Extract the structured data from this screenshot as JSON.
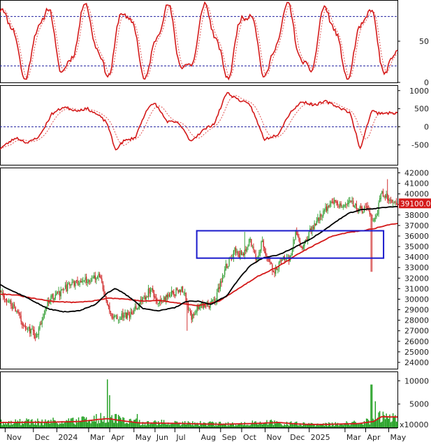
{
  "colors": {
    "up": "#2e9b2e",
    "down": "#cc1a1a",
    "line_red": "#d41919",
    "line_black": "#000000",
    "dotted_red": "#e05050",
    "ref_line": "#2323a0",
    "box": "#1a1acc",
    "volume": "#1e9e1e",
    "price_label_bg": "#d41919",
    "price_label_text": "#ffffff"
  },
  "chart_data": [
    {
      "panel": "stochastic",
      "type": "line",
      "y_ticks": [
        "50",
        "0"
      ],
      "y_tick_values": [
        50,
        0
      ],
      "ref_levels": [
        20,
        80
      ],
      "ylim": [
        0,
        100
      ]
    },
    {
      "panel": "macd",
      "type": "line",
      "y_ticks": [
        "1000",
        "500",
        "0",
        "-500"
      ],
      "y_tick_values": [
        1000,
        500,
        0,
        -500
      ],
      "ref_levels": [
        0
      ],
      "ylim": [
        -1050,
        1150
      ]
    },
    {
      "panel": "price",
      "type": "candlestick",
      "y_ticks": [
        "42000",
        "41000",
        "40000",
        "39000",
        "38000",
        "37000",
        "36000",
        "35000",
        "34000",
        "33000",
        "32000",
        "31000",
        "30000",
        "29000",
        "28000",
        "27000",
        "26000",
        "25000",
        "24000"
      ],
      "y_tick_values": [
        42000,
        41000,
        40000,
        39000,
        38000,
        37000,
        36000,
        35000,
        34000,
        33000,
        32000,
        31000,
        30000,
        29000,
        28000,
        27000,
        26000,
        25000,
        24000
      ],
      "ylim": [
        23400,
        42500
      ],
      "last_price_label": "39100.00",
      "last_price": 39100,
      "box": {
        "x_start": 0.495,
        "x_end": 0.965,
        "y_low": 33900,
        "y_high": 36500
      },
      "ma_black_knots": [
        [
          0,
          31400
        ],
        [
          0.03,
          30800
        ],
        [
          0.06,
          30300
        ],
        [
          0.09,
          29700
        ],
        [
          0.12,
          29100
        ],
        [
          0.16,
          28800
        ],
        [
          0.2,
          28900
        ],
        [
          0.24,
          29500
        ],
        [
          0.27,
          30600
        ],
        [
          0.29,
          31000
        ],
        [
          0.31,
          30600
        ],
        [
          0.34,
          29800
        ],
        [
          0.36,
          29100
        ],
        [
          0.4,
          28900
        ],
        [
          0.44,
          29200
        ],
        [
          0.47,
          29800
        ],
        [
          0.5,
          29800
        ],
        [
          0.53,
          29500
        ],
        [
          0.57,
          30300
        ],
        [
          0.6,
          31900
        ],
        [
          0.63,
          33200
        ],
        [
          0.66,
          33900
        ],
        [
          0.7,
          34200
        ],
        [
          0.74,
          34900
        ],
        [
          0.78,
          35700
        ],
        [
          0.81,
          36400
        ],
        [
          0.85,
          37500
        ],
        [
          0.88,
          38200
        ],
        [
          0.91,
          38500
        ],
        [
          0.94,
          38600
        ],
        [
          0.96,
          38700
        ],
        [
          1,
          38800
        ]
      ],
      "ma_red_knots": [
        [
          0,
          30500
        ],
        [
          0.04,
          30400
        ],
        [
          0.08,
          30100
        ],
        [
          0.13,
          29800
        ],
        [
          0.18,
          29700
        ],
        [
          0.23,
          29800
        ],
        [
          0.27,
          30100
        ],
        [
          0.32,
          30000
        ],
        [
          0.36,
          29800
        ],
        [
          0.4,
          29900
        ],
        [
          0.45,
          29600
        ],
        [
          0.5,
          29400
        ],
        [
          0.55,
          29800
        ],
        [
          0.6,
          31000
        ],
        [
          0.65,
          32200
        ],
        [
          0.7,
          33100
        ],
        [
          0.75,
          34300
        ],
        [
          0.79,
          35100
        ],
        [
          0.83,
          35900
        ],
        [
          0.87,
          36300
        ],
        [
          0.91,
          36500
        ],
        [
          0.94,
          36700
        ],
        [
          0.97,
          37000
        ],
        [
          1,
          37200
        ]
      ],
      "candle_path_knots": [
        [
          0,
          30500
        ],
        [
          0.03,
          29400
        ],
        [
          0.06,
          27600
        ],
        [
          0.09,
          26500
        ],
        [
          0.12,
          29800
        ],
        [
          0.15,
          30600
        ],
        [
          0.18,
          31500
        ],
        [
          0.21,
          31800
        ],
        [
          0.235,
          31900
        ],
        [
          0.25,
          32400
        ],
        [
          0.26,
          30600
        ],
        [
          0.28,
          28500
        ],
        [
          0.3,
          28300
        ],
        [
          0.33,
          28500
        ],
        [
          0.36,
          30000
        ],
        [
          0.38,
          31000
        ],
        [
          0.4,
          29600
        ],
        [
          0.43,
          30500
        ],
        [
          0.46,
          31000
        ],
        [
          0.48,
          28200
        ],
        [
          0.5,
          29500
        ],
        [
          0.52,
          29400
        ],
        [
          0.54,
          29800
        ],
        [
          0.555,
          31500
        ],
        [
          0.57,
          33200
        ],
        [
          0.59,
          34600
        ],
        [
          0.61,
          34100
        ],
        [
          0.63,
          35700
        ],
        [
          0.645,
          33900
        ],
        [
          0.66,
          35500
        ],
        [
          0.675,
          33400
        ],
        [
          0.69,
          32700
        ],
        [
          0.71,
          33700
        ],
        [
          0.73,
          34000
        ],
        [
          0.745,
          36500
        ],
        [
          0.76,
          34800
        ],
        [
          0.78,
          36500
        ],
        [
          0.8,
          37700
        ],
        [
          0.82,
          38500
        ],
        [
          0.84,
          39300
        ],
        [
          0.86,
          38700
        ],
        [
          0.88,
          39600
        ],
        [
          0.895,
          38700
        ],
        [
          0.91,
          38400
        ],
        [
          0.925,
          38500
        ],
        [
          0.935,
          37600
        ],
        [
          0.945,
          37600
        ],
        [
          0.96,
          40200
        ],
        [
          0.975,
          39700
        ],
        [
          1,
          39100
        ]
      ],
      "candle_count": 360,
      "spikes": [
        {
          "t": 0.24,
          "high": 32600
        },
        {
          "t": 0.47,
          "low": 27000
        },
        {
          "t": 0.615,
          "high": 36400
        },
        {
          "t": 0.935,
          "low": 32600
        },
        {
          "t": 0.975,
          "high": 41400
        }
      ]
    },
    {
      "panel": "volume",
      "type": "bar",
      "y_ticks": [
        "10000",
        "5000"
      ],
      "y_tick_values": [
        10000,
        5000
      ],
      "ylim": [
        0,
        12000
      ],
      "scale_label": "x10000",
      "ma_red_knots": [
        [
          0,
          1050
        ],
        [
          0.12,
          1100
        ],
        [
          0.2,
          1250
        ],
        [
          0.27,
          1900
        ],
        [
          0.3,
          1500
        ],
        [
          0.35,
          950
        ],
        [
          0.45,
          850
        ],
        [
          0.55,
          650
        ],
        [
          0.65,
          850
        ],
        [
          0.7,
          1050
        ],
        [
          0.75,
          700
        ],
        [
          0.8,
          600
        ],
        [
          0.9,
          800
        ],
        [
          0.94,
          1250
        ],
        [
          0.96,
          2300
        ],
        [
          1,
          2200
        ]
      ],
      "spikes": [
        {
          "t": 0.27,
          "value": 10300
        },
        {
          "t": 0.935,
          "value": 9200
        },
        {
          "t": 0.945,
          "value": 5600
        },
        {
          "t": 0.955,
          "value": 3500
        }
      ]
    }
  ],
  "x_axis": {
    "labels": [
      "Nov",
      "Dec",
      "2024",
      "Mar",
      "Apr",
      "May",
      "Jun",
      "Jul",
      "Aug",
      "Sep",
      "Oct",
      "Nov",
      "Dec",
      "2025",
      "Mar",
      "Apr",
      "May"
    ],
    "positions": [
      0.013,
      0.084,
      0.143,
      0.223,
      0.276,
      0.337,
      0.39,
      0.44,
      0.502,
      0.555,
      0.608,
      0.667,
      0.726,
      0.778,
      0.868,
      0.92,
      0.978
    ]
  }
}
